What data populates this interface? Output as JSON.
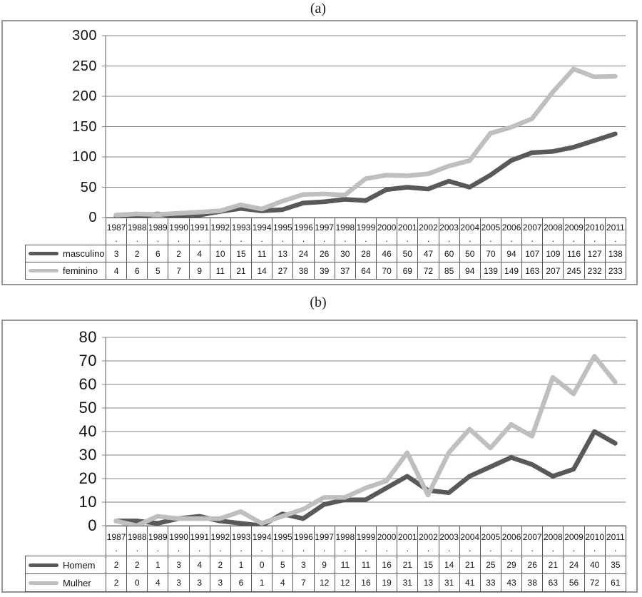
{
  "panels": [
    {
      "title": "(a)"
    },
    {
      "title": "(b)"
    }
  ],
  "chart_data": [
    {
      "type": "line",
      "title": "(a)",
      "categories": [
        "1987",
        "1988",
        "1989",
        "1990",
        "1991",
        "1992",
        "1993",
        "1994",
        "1995",
        "1996",
        "1997",
        "1998",
        "1999",
        "2000",
        "2001",
        "2002",
        "2003",
        "2004",
        "2005",
        "2006",
        "2007",
        "2008",
        "2009",
        "2010",
        "2011"
      ],
      "category_suffix": ".",
      "series": [
        {
          "name": "masculino",
          "color": "#595959",
          "values": [
            3,
            2,
            6,
            2,
            4,
            10,
            15,
            11,
            13,
            24,
            26,
            30,
            28,
            46,
            50,
            47,
            60,
            50,
            70,
            94,
            107,
            109,
            116,
            127,
            138
          ]
        },
        {
          "name": "feminino",
          "color": "#bfbfbf",
          "values": [
            4,
            6,
            5,
            7,
            9,
            11,
            21,
            14,
            27,
            38,
            39,
            37,
            64,
            70,
            69,
            72,
            85,
            94,
            139,
            149,
            163,
            207,
            245,
            232,
            233
          ]
        }
      ],
      "xlabel": "",
      "ylabel": "",
      "ylim": [
        0,
        300
      ],
      "yticks": [
        0,
        50,
        100,
        150,
        200,
        250,
        300
      ],
      "grid": true,
      "legend_position": "table-left",
      "gridline_color": "#808080"
    },
    {
      "type": "line",
      "title": "(b)",
      "categories": [
        "1987",
        "1988",
        "1989",
        "1990",
        "1991",
        "1992",
        "1993",
        "1994",
        "1995",
        "1996",
        "1997",
        "1998",
        "1999",
        "2000",
        "2001",
        "2002",
        "2003",
        "2004",
        "2005",
        "2006",
        "2007",
        "2008",
        "2009",
        "2010",
        "2011"
      ],
      "category_suffix": ".",
      "series": [
        {
          "name": "Homem",
          "color": "#595959",
          "values": [
            2,
            2,
            1,
            3,
            4,
            2,
            1,
            0,
            5,
            3,
            9,
            11,
            11,
            16,
            21,
            15,
            14,
            21,
            25,
            29,
            26,
            21,
            24,
            40,
            35
          ]
        },
        {
          "name": "Mulher",
          "color": "#bfbfbf",
          "values": [
            2,
            0,
            4,
            3,
            3,
            3,
            6,
            1,
            4,
            7,
            12,
            12,
            16,
            19,
            31,
            13,
            31,
            41,
            33,
            43,
            38,
            63,
            56,
            72,
            61
          ]
        }
      ],
      "xlabel": "",
      "ylabel": "",
      "ylim": [
        0,
        80
      ],
      "yticks": [
        0,
        10,
        20,
        30,
        40,
        50,
        60,
        70,
        80
      ],
      "grid": true,
      "legend_position": "table-left",
      "gridline_color": "#808080"
    }
  ]
}
